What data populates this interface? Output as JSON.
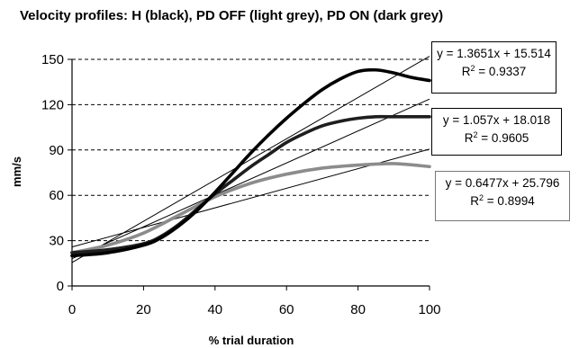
{
  "chart_data": {
    "type": "line",
    "title": "Velocity profiles: H (black), PD OFF (light grey), PD ON (dark grey)",
    "xlabel": "% trial duration",
    "ylabel": "mm/s",
    "xlim": [
      0,
      100
    ],
    "ylim": [
      0,
      150
    ],
    "xticks": [
      "0",
      "20",
      "40",
      "60",
      "80",
      "100"
    ],
    "yticks": [
      "0",
      "30",
      "60",
      "90",
      "120",
      "150"
    ],
    "grid": "horizontal dashed",
    "series": [
      {
        "name": "H (black)",
        "color": "#000000",
        "x": [
          0,
          10,
          20,
          25,
          30,
          35,
          40,
          45,
          50,
          55,
          60,
          65,
          70,
          75,
          80,
          85,
          90,
          95,
          100
        ],
        "y": [
          20,
          22,
          27,
          32,
          40,
          50,
          62,
          75,
          88,
          100,
          111,
          121,
          130,
          137,
          142,
          143,
          141,
          138,
          136
        ]
      },
      {
        "name": "PD ON (dark grey)",
        "color": "#1e1e1e",
        "x": [
          0,
          10,
          20,
          25,
          30,
          35,
          40,
          45,
          50,
          55,
          60,
          65,
          70,
          75,
          80,
          85,
          90,
          95,
          100
        ],
        "y": [
          22,
          24,
          28,
          33,
          41,
          51,
          61,
          70,
          79,
          87,
          95,
          101,
          106,
          109,
          111,
          112,
          112,
          112,
          112
        ]
      },
      {
        "name": "PD OFF (light grey)",
        "color": "#8c8c8c",
        "x": [
          0,
          10,
          20,
          30,
          40,
          50,
          60,
          70,
          80,
          90,
          100
        ],
        "y": [
          22,
          27,
          35,
          47,
          59,
          68,
          74,
          78,
          80,
          81,
          79
        ]
      }
    ],
    "trendlines": [
      {
        "slope": 1.3651,
        "intercept": 15.514,
        "equation": "y = 1.3651x + 15.514",
        "r2_label": "R",
        "r2_value": "= 0.9337"
      },
      {
        "slope": 1.057,
        "intercept": 18.018,
        "equation": "y = 1.057x + 18.018",
        "r2_label": "R",
        "r2_value": "= 0.9605"
      },
      {
        "slope": 0.6477,
        "intercept": 25.796,
        "equation": "y = 0.6477x + 25.796",
        "r2_label": "R",
        "r2_value": "= 0.8994"
      }
    ]
  }
}
